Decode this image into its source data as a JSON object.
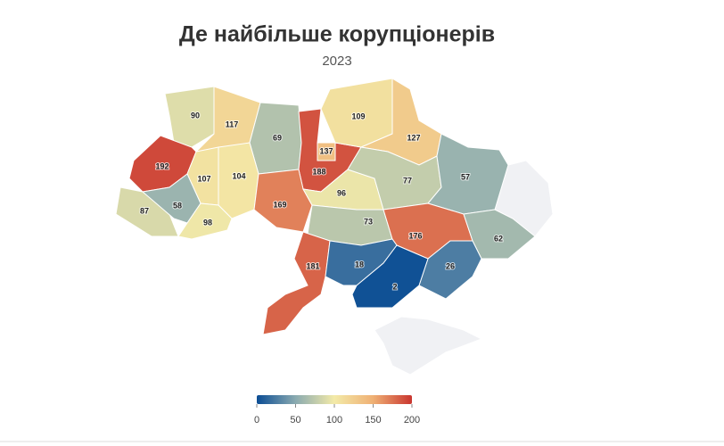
{
  "chart_data": {
    "type": "choropleth",
    "title": "Де найбільше корупціонерів",
    "subtitle": "2023",
    "values": [
      90,
      117,
      69,
      188,
      137,
      109,
      127,
      192,
      107,
      104,
      87,
      58,
      98,
      169,
      96,
      77,
      57,
      73,
      176,
      62,
      181,
      18,
      26,
      2
    ],
    "colorscale": [
      "#0b4d94",
      "#8aaab0",
      "#f3eaa8",
      "#efb074",
      "#c9352f"
    ],
    "clim": [
      0,
      200
    ],
    "cticks": [
      0,
      50,
      100,
      150,
      200
    ]
  }
}
